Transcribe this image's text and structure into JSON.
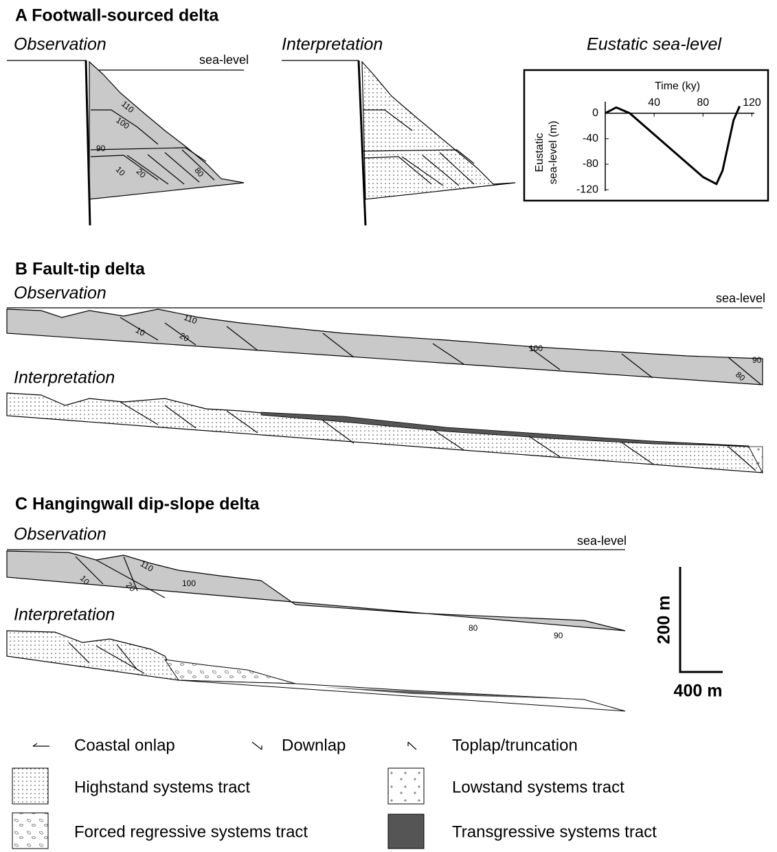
{
  "panel_a": {
    "title": "A  Footwall-sourced delta",
    "observation": "Observation",
    "interpretation": "Interpretation",
    "sea_level": "sea-level",
    "contours": [
      "110",
      "100",
      "90",
      "10",
      "20",
      "80"
    ]
  },
  "chart_data": {
    "type": "line",
    "title": "Eustatic  sea-level",
    "x_label": "Time (ky)",
    "y_label": [
      "Eustatic",
      "sea-level (m)"
    ],
    "x": [
      0,
      9,
      20,
      80,
      91,
      96,
      105,
      110
    ],
    "values": [
      0,
      9,
      0,
      -100,
      -111,
      -90,
      -11,
      11
    ],
    "color": "#000000",
    "xlim": [
      0,
      122
    ],
    "ylim": [
      -122,
      18
    ],
    "xticks": [
      40,
      80,
      120
    ],
    "yticks": [
      0,
      -40,
      -80,
      -120
    ]
  },
  "panel_b": {
    "title": "B  Fault-tip delta",
    "observation": "Observation",
    "interpretation": "Interpretation",
    "sea_level": "sea-level",
    "contours": [
      "110",
      "10",
      "20",
      "100",
      "90",
      "80"
    ]
  },
  "panel_c": {
    "title": "C  Hangingwall dip-slope delta",
    "observation": "Observation",
    "interpretation": "Interpretation",
    "sea_level": "sea-level",
    "contours": [
      "110",
      "10",
      "20",
      "100",
      "80",
      "90"
    ],
    "scale_vertical": "200 m",
    "scale_horizontal": "400 m"
  },
  "legend": {
    "items": [
      "Coastal onlap",
      "Downlap",
      "Toplap/truncation",
      "Highstand systems tract",
      "Lowstand systems tract",
      "Forced regressive systems tract",
      "Transgressive systems tract"
    ]
  }
}
